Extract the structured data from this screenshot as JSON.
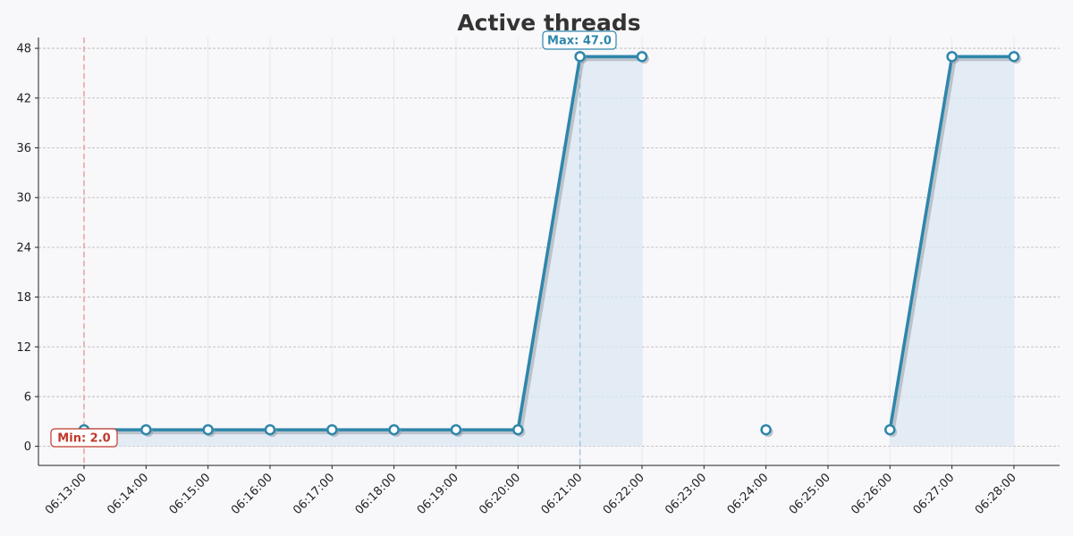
{
  "chart_data": {
    "type": "line",
    "title": "Active threads",
    "xlabel": "",
    "ylabel": "",
    "categories": [
      "06:13:00",
      "06:14:00",
      "06:15:00",
      "06:16:00",
      "06:17:00",
      "06:18:00",
      "06:19:00",
      "06:20:00",
      "06:21:00",
      "06:22:00",
      "06:23:00",
      "06:24:00",
      "06:25:00",
      "06:26:00",
      "06:27:00",
      "06:28:00"
    ],
    "series": [
      {
        "values": [
          2,
          2,
          2,
          2,
          2,
          2,
          2,
          2,
          47,
          47,
          null,
          2,
          null,
          2,
          47,
          47
        ]
      }
    ],
    "yticks": [
      0,
      6,
      12,
      18,
      24,
      30,
      36,
      42,
      48
    ],
    "ylim": [
      -2.3,
      49.3
    ],
    "grid": "horizontal",
    "min_annotation": {
      "label": "Min: 2.0",
      "category": "06:13:00",
      "value": 2.0
    },
    "max_annotation": {
      "label": "Max: 47.0",
      "category": "06:21:00",
      "value": 47.0
    }
  },
  "colors": {
    "line": "#2e86ab",
    "fill": "#dce8f3",
    "shadow": "#9aa0a6",
    "min": "#c0392b",
    "min_line": "#e8a0a0",
    "max_line": "#9ecae1",
    "background": "#f8f7fa"
  }
}
